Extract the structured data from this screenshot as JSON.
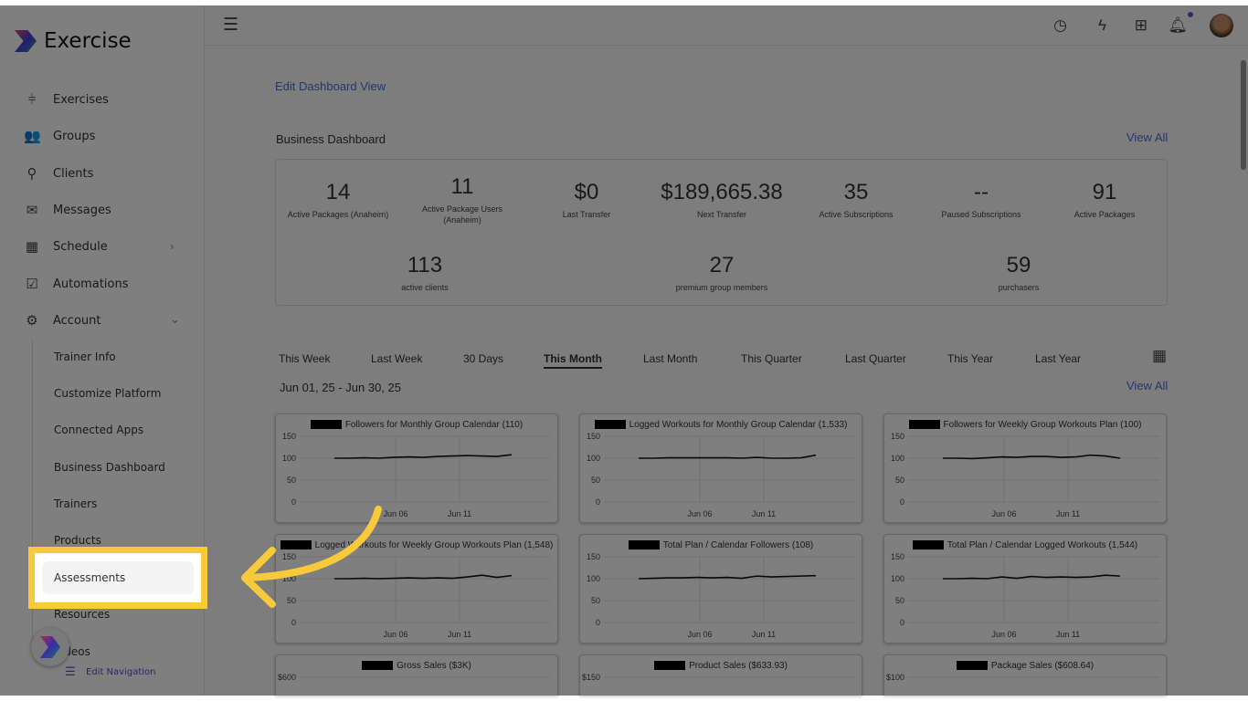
{
  "app": {
    "title": "Exercise"
  },
  "sidebar": {
    "items": [
      {
        "label": "Exercises",
        "icon": "dumbbell-icon"
      },
      {
        "label": "Groups",
        "icon": "users-icon"
      },
      {
        "label": "Clients",
        "icon": "user-icon"
      },
      {
        "label": "Messages",
        "icon": "mail-icon"
      },
      {
        "label": "Schedule",
        "icon": "calendar-icon"
      },
      {
        "label": "Automations",
        "icon": "checkbox-icon"
      },
      {
        "label": "Account",
        "icon": "gear-icon"
      }
    ],
    "account_sub": [
      "Trainer Info",
      "Customize Platform",
      "Connected Apps",
      "Business Dashboard",
      "Trainers",
      "Products",
      "Assessments",
      "Resources",
      "Videos"
    ],
    "edit_nav": "Edit Navigation"
  },
  "main": {
    "edit_link": "Edit Dashboard View",
    "section_title": "Business Dashboard",
    "view_all": "View All",
    "date_range": "Jun 01, 25 - Jun 30, 25",
    "stats": [
      {
        "value": "14",
        "label": "Active Packages (Anaheim)"
      },
      {
        "value": "11",
        "label": "Active Package Users (Anaheim)"
      },
      {
        "value": "$0",
        "label": "Last Transfer"
      },
      {
        "value": "$189,665.38",
        "label": "Next Transfer"
      },
      {
        "value": "35",
        "label": "Active Subscriptions"
      },
      {
        "value": "--",
        "label": "Paused Subscriptions"
      },
      {
        "value": "91",
        "label": "Active Packages"
      },
      {
        "value": "113",
        "label": "active clients"
      },
      {
        "value": "27",
        "label": "premium group members"
      },
      {
        "value": "59",
        "label": "purchasers"
      }
    ],
    "periods": [
      "This Week",
      "Last Week",
      "30 Days",
      "This Month",
      "Last Month",
      "This Quarter",
      "Last Quarter",
      "This Year",
      "Last Year"
    ],
    "active_period": "This Month"
  },
  "highlight_color": "#f9c93c",
  "chart_data": [
    {
      "type": "line",
      "title": "Followers for Monthly Group Calendar (110)",
      "yticks": [
        "150",
        "100",
        "50",
        "0"
      ],
      "ylim": [
        0,
        150
      ],
      "xticks": [
        "Jun 06",
        "Jun 11"
      ],
      "values": [
        100,
        100,
        101,
        100,
        102,
        103,
        102,
        104,
        105,
        106,
        105,
        104,
        108
      ]
    },
    {
      "type": "line",
      "title": "Logged Workouts for Monthly Group Calendar (1,533)",
      "yticks": [
        "150",
        "100",
        "50",
        "0"
      ],
      "ylim": [
        0,
        150
      ],
      "xticks": [
        "Jun 06",
        "Jun 11"
      ],
      "values": [
        100,
        100,
        101,
        101,
        101,
        101,
        101,
        100,
        102,
        100,
        100,
        101,
        107
      ]
    },
    {
      "type": "line",
      "title": "Followers for Weekly Group Workouts Plan (100)",
      "yticks": [
        "150",
        "100",
        "50",
        "0"
      ],
      "ylim": [
        0,
        150
      ],
      "xticks": [
        "Jun 06",
        "Jun 11"
      ],
      "values": [
        100,
        100,
        99,
        101,
        103,
        102,
        104,
        104,
        102,
        103,
        107,
        105,
        100
      ]
    },
    {
      "type": "line",
      "title": "Logged Workouts for Weekly Group Workouts Plan (1,548)",
      "yticks": [
        "150",
        "100",
        "50",
        "0"
      ],
      "ylim": [
        0,
        150
      ],
      "xticks": [
        "Jun 06",
        "Jun 11"
      ],
      "values": [
        100,
        100,
        101,
        100,
        101,
        102,
        101,
        102,
        101,
        104,
        108,
        103,
        107
      ]
    },
    {
      "type": "line",
      "title": "Total Plan / Calendar Followers (108)",
      "yticks": [
        "150",
        "100",
        "50",
        "0"
      ],
      "ylim": [
        0,
        150
      ],
      "xticks": [
        "Jun 06",
        "Jun 11"
      ],
      "values": [
        100,
        101,
        102,
        102,
        103,
        102,
        103,
        101,
        106,
        104,
        105,
        106,
        107
      ]
    },
    {
      "type": "line",
      "title": "Total Plan / Calendar Logged Workouts (1,544)",
      "yticks": [
        "150",
        "100",
        "50",
        "0"
      ],
      "ylim": [
        0,
        150
      ],
      "xticks": [
        "Jun 06",
        "Jun 11"
      ],
      "values": [
        100,
        100,
        101,
        100,
        104,
        101,
        105,
        103,
        104,
        103,
        104,
        108,
        106
      ]
    },
    {
      "type": "line",
      "title": "Gross Sales ($3K)",
      "yticks": [
        "$600"
      ],
      "xticks": [],
      "values": []
    },
    {
      "type": "line",
      "title": "Product Sales ($633.93)",
      "yticks": [
        "$150"
      ],
      "xticks": [],
      "values": []
    },
    {
      "type": "line",
      "title": "Package Sales ($608.64)",
      "yticks": [
        "$100"
      ],
      "xticks": [],
      "values": []
    }
  ]
}
